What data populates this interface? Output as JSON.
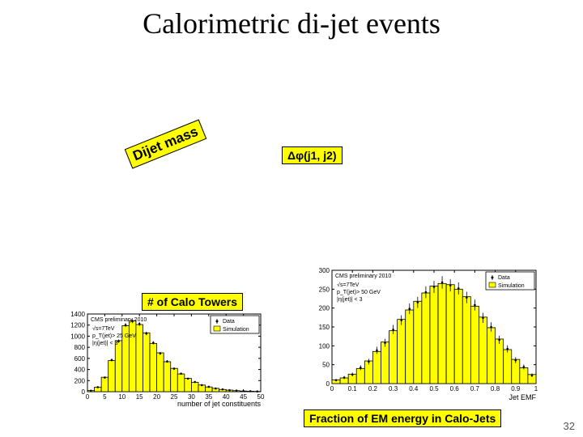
{
  "title": "Calorimetric di-jet events",
  "page_number": "32",
  "labels": {
    "dijet_mass": "Dijet mass",
    "dphi": "Δφ(j1, j2)",
    "ncalo": "# of Calo Towers",
    "emf": "Fraction of EM energy in Calo-Jets"
  },
  "chart_left": {
    "type": "histogram",
    "title_lines": [
      "CMS preliminary 2010"
    ],
    "info_lines": [
      "√s=7TeV",
      "p_T(jet)> 25 GeV",
      "|η(jet)| < 3"
    ],
    "legend": [
      {
        "label": "Data",
        "marker": "point",
        "color": "#000000"
      },
      {
        "label": "Simulation",
        "marker": "fill",
        "color": "#ffff00"
      }
    ],
    "x_axis": {
      "label": "number of jet constituents",
      "min": 0,
      "max": 50,
      "tick_step": 5
    },
    "y_axis": {
      "min": 0,
      "max": 1400,
      "tick_step": 200
    },
    "bin_edges": [
      0,
      2,
      4,
      6,
      8,
      10,
      12,
      14,
      16,
      18,
      20,
      22,
      24,
      26,
      28,
      30,
      32,
      34,
      36,
      38,
      40,
      42,
      44,
      46,
      48,
      50
    ],
    "sim_values": [
      20,
      80,
      260,
      560,
      920,
      1190,
      1280,
      1210,
      1060,
      870,
      700,
      540,
      420,
      320,
      240,
      170,
      120,
      85,
      60,
      40,
      28,
      18,
      12,
      8,
      5
    ],
    "data_values": [
      18,
      82,
      255,
      570,
      910,
      1200,
      1270,
      1220,
      1050,
      880,
      690,
      545,
      415,
      325,
      235,
      175,
      118,
      88,
      58,
      42,
      26,
      20,
      11,
      9,
      4
    ],
    "bar_color": "#ffff00",
    "bar_stroke": "#000000",
    "background_color": "#ffffff"
  },
  "chart_right": {
    "type": "histogram",
    "title_lines": [
      "CMS preliminary 2010"
    ],
    "info_lines": [
      "√s=7TeV",
      "p_T(jet)> 50 GeV",
      "|η(jet)| < 3"
    ],
    "legend": [
      {
        "label": "Data",
        "marker": "point",
        "color": "#000000"
      },
      {
        "label": "Simulation",
        "marker": "fill",
        "color": "#ffff00"
      }
    ],
    "x_axis": {
      "label": "Jet EMF",
      "min": 0,
      "max": 1,
      "tick_step": 0.1,
      "tick_format_hint": "truncated"
    },
    "y_axis": {
      "min": 0,
      "max": 300,
      "tick_step": 50
    },
    "bin_edges": [
      0,
      0.04,
      0.08,
      0.12,
      0.16,
      0.2,
      0.24,
      0.28,
      0.32,
      0.36,
      0.4,
      0.44,
      0.48,
      0.52,
      0.56,
      0.6,
      0.64,
      0.68,
      0.72,
      0.76,
      0.8,
      0.84,
      0.88,
      0.92,
      0.96,
      1.0
    ],
    "sim_values": [
      10,
      15,
      25,
      40,
      60,
      85,
      110,
      140,
      170,
      195,
      218,
      240,
      258,
      265,
      262,
      250,
      230,
      205,
      176,
      148,
      118,
      90,
      64,
      42,
      24
    ],
    "data_values": [
      9,
      16,
      24,
      42,
      58,
      88,
      108,
      143,
      168,
      198,
      215,
      242,
      256,
      268,
      260,
      252,
      228,
      208,
      174,
      150,
      116,
      92,
      62,
      44,
      22
    ],
    "bar_color": "#ffff00",
    "bar_stroke": "#000000",
    "background_color": "#ffffff"
  }
}
